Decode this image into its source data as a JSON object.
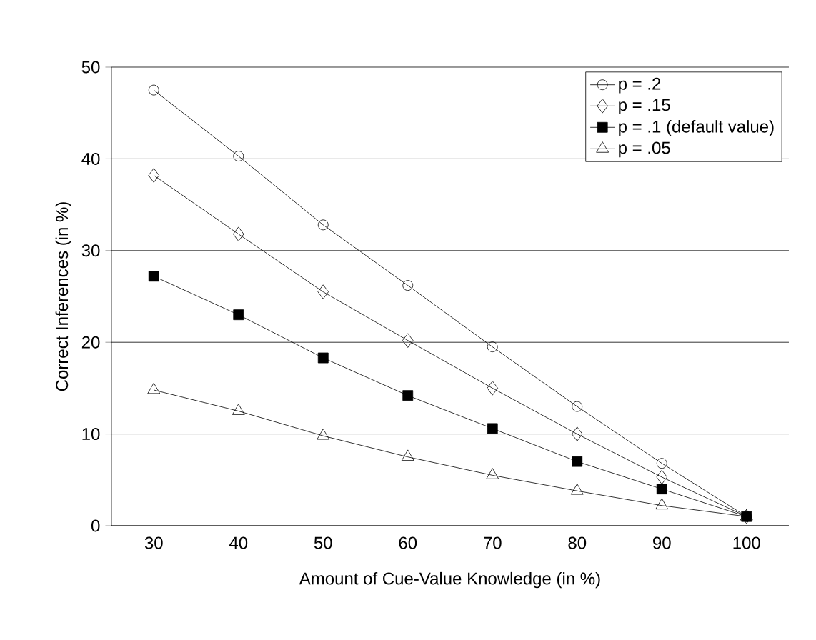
{
  "chart_data": {
    "type": "line",
    "xlabel": "Amount of Cue-Value Knowledge (in %)",
    "ylabel": "Correct Inferences (in %)",
    "categories": [
      "30",
      "40",
      "50",
      "60",
      "70",
      "80",
      "90",
      "100"
    ],
    "series": [
      {
        "name": "p = .2",
        "color": "#000000",
        "marker": "circle",
        "values": [
          47.5,
          40.3,
          32.8,
          26.2,
          19.5,
          13,
          6.8,
          1
        ]
      },
      {
        "name": "p = .15",
        "color": "#000000",
        "marker": "diamond",
        "values": [
          38.2,
          31.8,
          25.5,
          20.2,
          15,
          10,
          5.3,
          1
        ]
      },
      {
        "name": "p = .1 (default value)",
        "color": "#000000",
        "marker": "square",
        "values": [
          27.2,
          23,
          18.3,
          14.2,
          10.6,
          7,
          4,
          1
        ]
      },
      {
        "name": "p = .05",
        "color": "#000000",
        "marker": "triangle",
        "values": [
          14.8,
          12.5,
          9.8,
          7.5,
          5.5,
          3.8,
          2.2,
          1
        ]
      }
    ],
    "ylim": [
      0,
      50
    ],
    "yticks": [
      0,
      10,
      20,
      30,
      40,
      50
    ],
    "grid": "y",
    "legend": "top right",
    "line_style": "solid"
  }
}
